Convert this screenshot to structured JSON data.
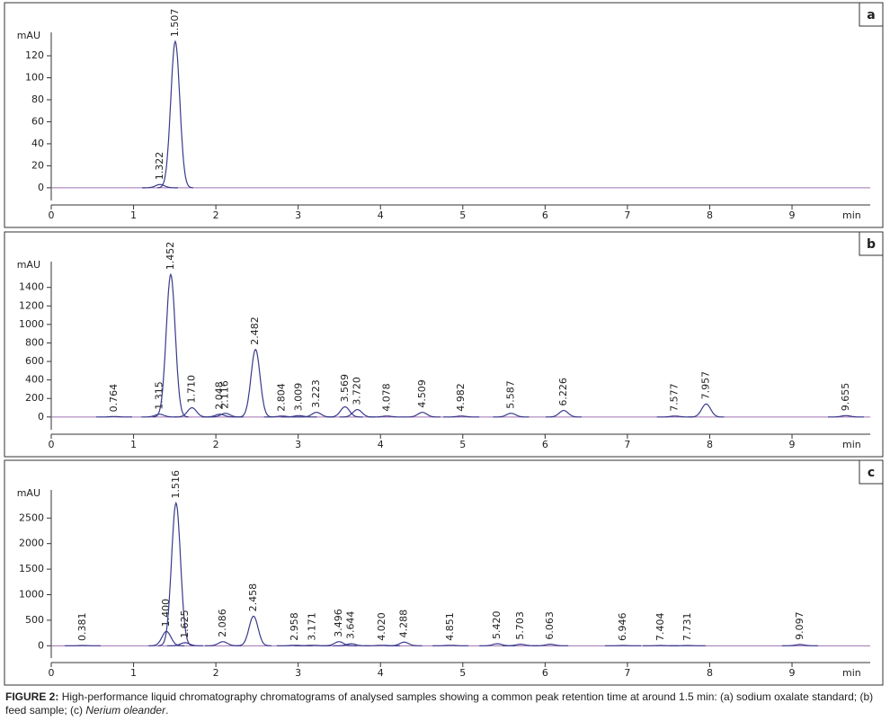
{
  "chart_data": [
    {
      "type": "chromatogram",
      "panel_label": "a",
      "y_title": "mAU",
      "x_unit": "min",
      "xlim": [
        0,
        9.95
      ],
      "xticks": [
        0,
        1,
        2,
        3,
        4,
        5,
        6,
        7,
        8,
        9
      ],
      "ylim": [
        -5,
        138
      ],
      "yticks": [
        0,
        20,
        40,
        60,
        80,
        100,
        120
      ],
      "x": [
        1.322,
        1.507
      ],
      "peak_labels": [
        "1.322",
        "1.507"
      ],
      "values": [
        3,
        133
      ],
      "color": "#3a3a8c",
      "baseline_color": "#a070b0",
      "grid": false
    },
    {
      "type": "chromatogram",
      "panel_label": "b",
      "y_title": "mAU",
      "x_unit": "min",
      "xlim": [
        0,
        9.95
      ],
      "xticks": [
        0,
        1,
        2,
        3,
        4,
        5,
        6,
        7,
        8,
        9
      ],
      "ylim": [
        -60,
        1640
      ],
      "yticks": [
        0,
        200,
        400,
        600,
        800,
        1000,
        1200,
        1400
      ],
      "x": [
        0.764,
        1.315,
        1.452,
        1.71,
        2.048,
        2.116,
        2.482,
        2.804,
        3.009,
        3.223,
        3.569,
        3.72,
        4.078,
        4.509,
        4.982,
        5.587,
        6.226,
        7.577,
        7.957,
        9.655
      ],
      "peak_labels": [
        "0.764",
        "1.315",
        "1.452",
        "1.710",
        "2.048",
        "2.116",
        "2.482",
        "2.804",
        "3.009",
        "3.223",
        "3.569",
        "3.720",
        "4.078",
        "4.509",
        "4.982",
        "5.587",
        "6.226",
        "7.577",
        "7.957",
        "9.655"
      ],
      "values": [
        5,
        30,
        1540,
        100,
        30,
        40,
        730,
        10,
        15,
        50,
        110,
        80,
        10,
        50,
        10,
        40,
        70,
        10,
        140,
        15
      ],
      "color": "#3a3a8c",
      "baseline_color": "#a070b0",
      "grid": false
    },
    {
      "type": "chromatogram",
      "panel_label": "c",
      "y_title": "mAU",
      "x_unit": "min",
      "xlim": [
        0,
        9.95
      ],
      "xticks": [
        0,
        1,
        2,
        3,
        4,
        5,
        6,
        7,
        8,
        9
      ],
      "ylim": [
        -100,
        2980
      ],
      "yticks": [
        0,
        500,
        1000,
        1500,
        2000,
        2500
      ],
      "x": [
        0.381,
        1.4,
        1.516,
        1.625,
        2.086,
        2.458,
        2.958,
        3.171,
        3.496,
        3.644,
        4.02,
        4.288,
        4.851,
        5.42,
        5.703,
        6.063,
        6.946,
        7.404,
        7.731,
        9.097
      ],
      "peak_labels": [
        "0.381",
        "1.400",
        "1.516",
        "1.625",
        "2.086",
        "2.458",
        "2.958",
        "3.171",
        "3.496",
        "3.644",
        "4.020",
        "4.288",
        "4.851",
        "5.420",
        "5.703",
        "6.063",
        "6.946",
        "7.404",
        "7.731",
        "9.097"
      ],
      "values": [
        5,
        280,
        2795,
        60,
        80,
        580,
        10,
        10,
        80,
        40,
        10,
        70,
        10,
        40,
        30,
        30,
        5,
        5,
        5,
        25
      ],
      "color": "#3a3a8c",
      "baseline_color": "#a070b0",
      "grid": false
    }
  ],
  "caption": {
    "label": "FIGURE 2:",
    "text": "High-performance liquid chromatography chromatograms of analysed samples showing a common peak retention time at around 1.5 min: (a) sodium oxalate standard; (b) feed sample; (c)",
    "species": "Nerium oleander",
    "end": "."
  }
}
